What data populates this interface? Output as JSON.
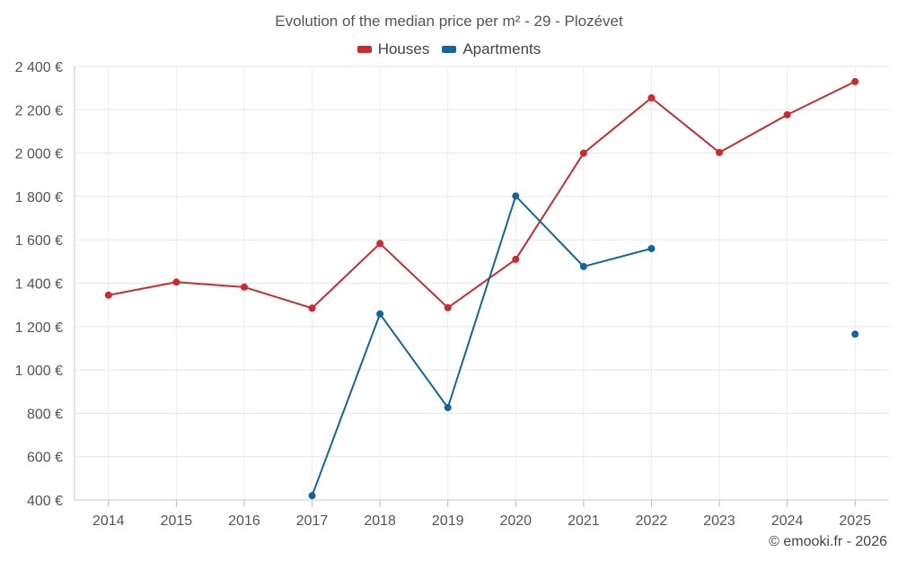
{
  "chart_data": {
    "type": "line",
    "title": "Evolution of the median price per m² - 29 - Plozévet",
    "categories": [
      "2014",
      "2015",
      "2016",
      "2017",
      "2018",
      "2019",
      "2020",
      "2021",
      "2022",
      "2023",
      "2024",
      "2025"
    ],
    "series": [
      {
        "name": "Houses",
        "color": "#d0282c",
        "values": [
          1345,
          1405,
          1382,
          1285,
          1583,
          1287,
          1510,
          2000,
          2255,
          2003,
          2177,
          2330
        ]
      },
      {
        "name": "Apartments",
        "color": "#0f67a1",
        "values": [
          null,
          null,
          null,
          420,
          1258,
          826,
          1802,
          1477,
          1560,
          null,
          null,
          1165
        ]
      }
    ],
    "ylim": [
      400,
      2400
    ],
    "yticks": [
      400,
      600,
      800,
      1000,
      1200,
      1400,
      1600,
      1800,
      2000,
      2200,
      2400
    ],
    "ytick_labels": [
      "400 €",
      "600 €",
      "800 €",
      "1 000 €",
      "1 200 €",
      "1 400 €",
      "1 600 €",
      "1 800 €",
      "2 000 €",
      "2 200 €",
      "2 400 €"
    ],
    "xlabel": "",
    "ylabel": "",
    "grid": true,
    "legend_position": "top-center"
  },
  "credit": "© emooki.fr - 2026"
}
